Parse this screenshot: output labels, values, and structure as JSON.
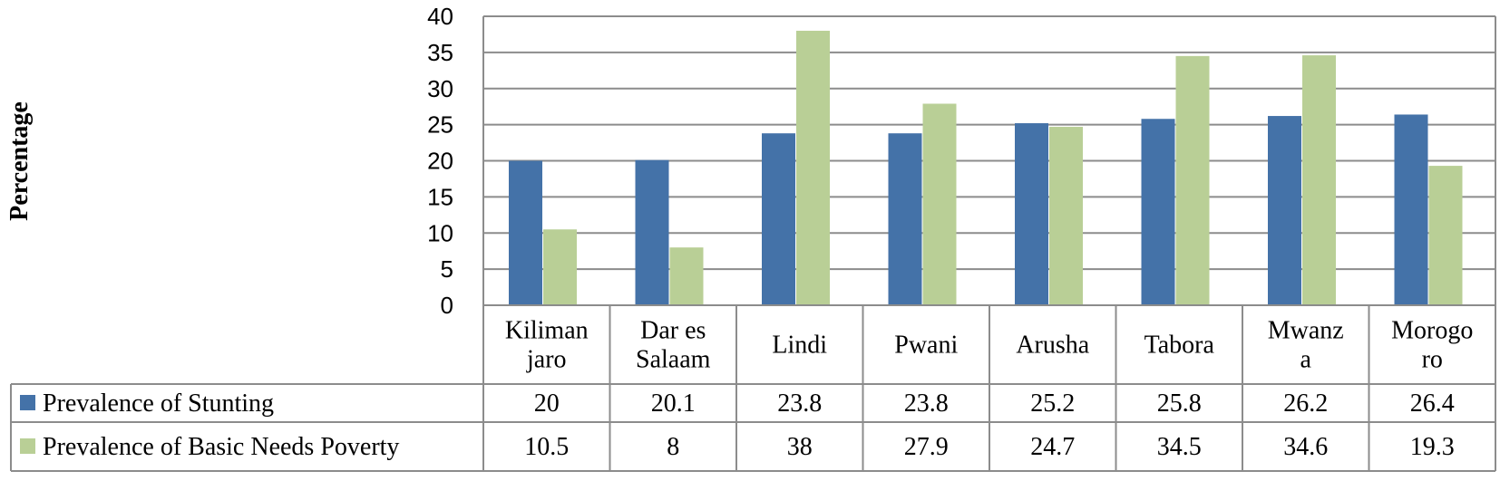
{
  "chart_data": {
    "type": "bar",
    "ylabel": "Percentage",
    "ylim": [
      0,
      40
    ],
    "yticks": [
      0,
      5,
      10,
      15,
      20,
      25,
      30,
      35,
      40
    ],
    "grid": true,
    "legend": "data-table",
    "categories": [
      [
        "Kiliman",
        "jaro"
      ],
      [
        "Dar es",
        "Salaam"
      ],
      [
        "Lindi"
      ],
      [
        "Pwani"
      ],
      [
        "Arusha"
      ],
      [
        "Tabora"
      ],
      [
        "Mwanz",
        "a"
      ],
      [
        "Morogo",
        "ro"
      ]
    ],
    "series": [
      {
        "name": "Prevalence of Stunting",
        "color": "#4472A8",
        "values": [
          20,
          20.1,
          23.8,
          23.8,
          25.2,
          25.8,
          26.2,
          26.4
        ],
        "labels": [
          "20",
          "20.1",
          "23.8",
          "23.8",
          "25.2",
          "25.8",
          "26.2",
          "26.4"
        ]
      },
      {
        "name": "Prevalence of Basic Needs Poverty",
        "color": "#B9CF96",
        "values": [
          10.5,
          8,
          38,
          27.9,
          24.7,
          34.5,
          34.6,
          19.3
        ],
        "labels": [
          "10.5",
          "8",
          "38",
          "27.9",
          "24.7",
          "34.5",
          "34.6",
          "19.3"
        ]
      }
    ]
  }
}
